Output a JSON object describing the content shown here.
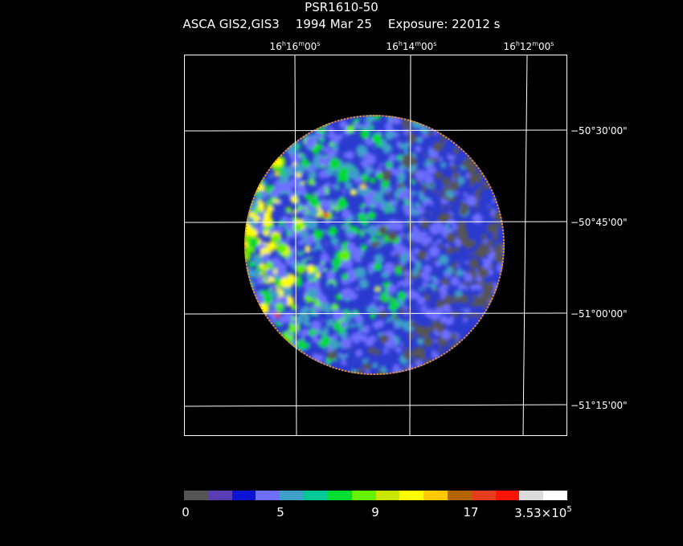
{
  "title": "PSR1610-50",
  "subtitle": {
    "instrument": "ASCA GIS2,GIS3",
    "date": "1994 Mar 25",
    "exposure": "Exposure: 22012 s"
  },
  "ra_labels": [
    {
      "h": "16",
      "m": "16",
      "s": "00"
    },
    {
      "h": "16",
      "m": "14",
      "s": "00"
    },
    {
      "h": "16",
      "m": "12",
      "s": "00"
    }
  ],
  "dec_labels": [
    "−50°30'00\"",
    "−50°45'00\"",
    "−51°00'00\"",
    "−51°15'00\""
  ],
  "colorbar": {
    "colors": [
      "#555555",
      "#5a3cb4",
      "#0a14d2",
      "#6e6eff",
      "#3ca0c8",
      "#00c896",
      "#00dc32",
      "#64f000",
      "#c8e600",
      "#ffff00",
      "#ffc800",
      "#b46400",
      "#e63c1e",
      "#ff1400",
      "#dcdcdc",
      "#ffffff"
    ],
    "tick_labels": [
      "0",
      "5",
      "9",
      "17"
    ],
    "max_label_base": "3.53×10",
    "max_label_exp": "5"
  }
}
